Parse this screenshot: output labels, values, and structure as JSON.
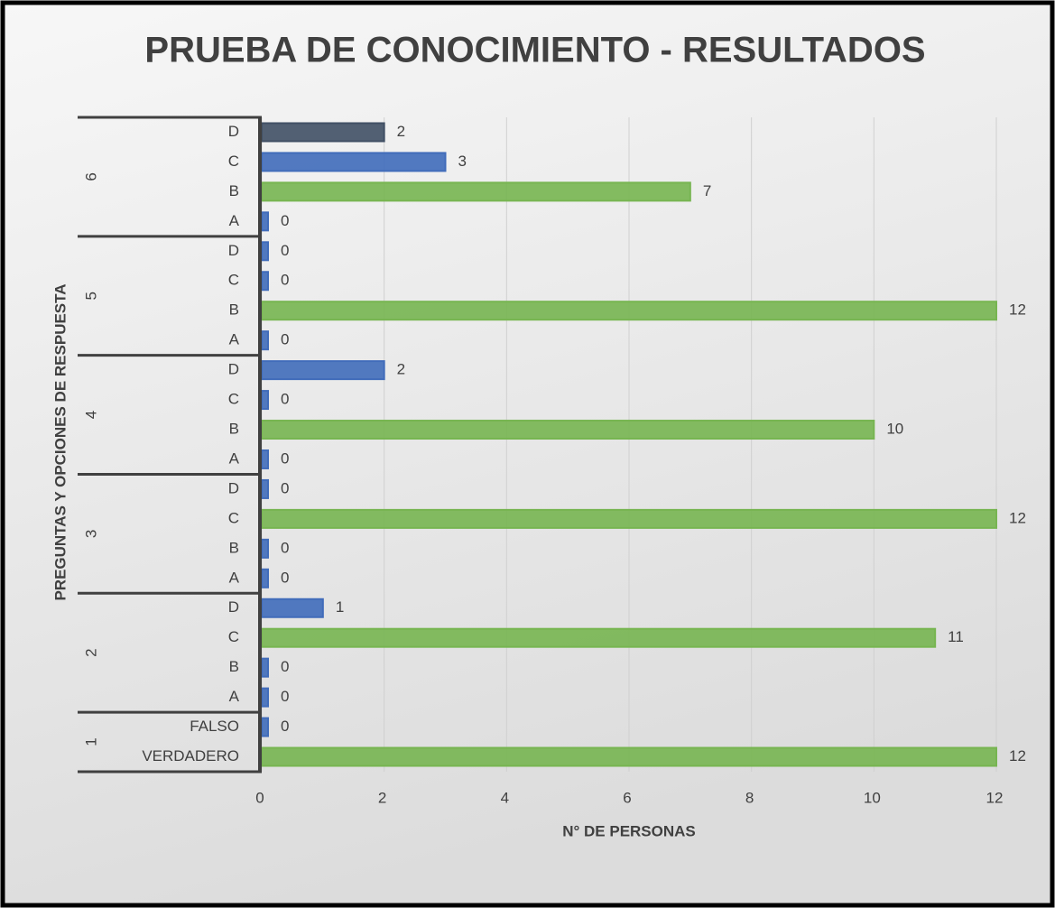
{
  "chart_data": {
    "type": "bar",
    "orientation": "horizontal",
    "title": "PRUEBA DE CONOCIMIENTO - RESULTADOS",
    "x_label": "N° DE  PERSONAS",
    "y_label": "PREGUNTAS Y OPCIONES DE RESPUESTA",
    "xlim": [
      0,
      12
    ],
    "xticks": [
      0,
      2,
      4,
      6,
      8,
      10,
      12
    ],
    "grid": true,
    "groups": [
      {
        "name": "1",
        "categories": [
          "VERDADERO",
          "FALSO"
        ],
        "values": [
          12,
          0
        ],
        "colors": [
          "#7dbf55",
          "#4472c4"
        ]
      },
      {
        "name": "2",
        "categories": [
          "A",
          "B",
          "C",
          "D"
        ],
        "values": [
          0,
          0,
          11,
          1
        ],
        "colors": [
          "#4472c4",
          "#4472c4",
          "#7dbf55",
          "#4472c4"
        ]
      },
      {
        "name": "3",
        "categories": [
          "A",
          "B",
          "C",
          "D"
        ],
        "values": [
          0,
          0,
          12,
          0
        ],
        "colors": [
          "#4472c4",
          "#4472c4",
          "#7dbf55",
          "#4472c4"
        ]
      },
      {
        "name": "4",
        "categories": [
          "A",
          "B",
          "C",
          "D"
        ],
        "values": [
          0,
          10,
          0,
          2
        ],
        "colors": [
          "#4472c4",
          "#7dbf55",
          "#4472c4",
          "#4472c4"
        ]
      },
      {
        "name": "5",
        "categories": [
          "A",
          "B",
          "C",
          "D"
        ],
        "values": [
          0,
          12,
          0,
          0
        ],
        "colors": [
          "#4472c4",
          "#7dbf55",
          "#4472c4",
          "#4472c4"
        ]
      },
      {
        "name": "6",
        "categories": [
          "A",
          "B",
          "C",
          "D"
        ],
        "values": [
          0,
          7,
          3,
          2
        ],
        "colors": [
          "#4472c4",
          "#7dbf55",
          "#4472c4",
          "#44546a"
        ]
      }
    ]
  }
}
